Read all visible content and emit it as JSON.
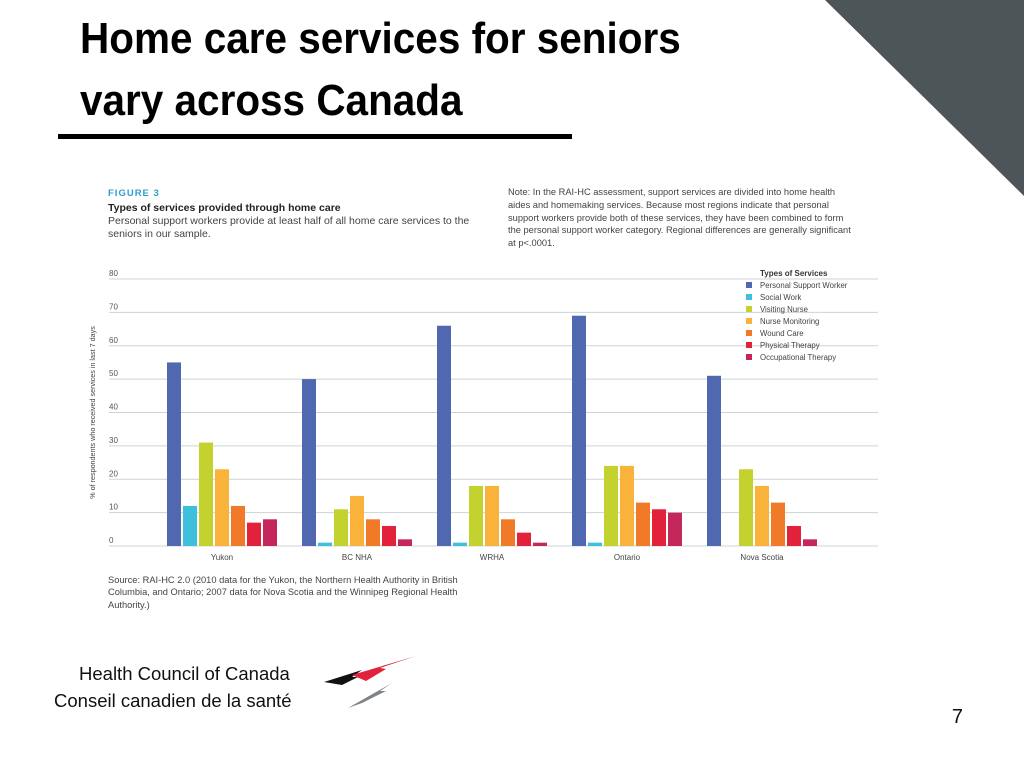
{
  "slide": {
    "title_line1": "Home care services for seniors",
    "title_line2": "vary across Canada",
    "page_number": "7",
    "accent_color": "#4d5559"
  },
  "figure": {
    "label": "FIGURE 3",
    "title": "Types of services provided through home care",
    "subtitle": "Personal support workers provide at least half of all home care services to the seniors in our sample.",
    "note": "Note: In the RAI-HC assessment, support services are divided into home health aides and homemaking services. Because most regions indicate that personal support workers provide both of these services, they have been combined to form the personal support worker category. Regional differences are generally significant at p<.0001.",
    "source": "Source: RAI-HC 2.0 (2010 data for the Yukon, the Northern Health Authority in British Columbia, and Ontario; 2007 data for Nova Scotia and the Winnipeg Regional Health Authority.)"
  },
  "chart_data": {
    "type": "bar",
    "title": "Types of services provided through home care",
    "xlabel": "",
    "ylabel": "% of respondents who received services in last 7 days",
    "ylim": [
      0,
      80
    ],
    "yticks": [
      0,
      10,
      20,
      30,
      40,
      50,
      60,
      70,
      80
    ],
    "grid": true,
    "legend_title": "Types of Services",
    "legend_position": "top-right",
    "categories": [
      "Yukon",
      "BC NHA",
      "WRHA",
      "Ontario",
      "Nova Scotia"
    ],
    "series": [
      {
        "name": "Personal Support Worker",
        "color": "#5068b0",
        "values": [
          55,
          50,
          66,
          69,
          51
        ]
      },
      {
        "name": "Social Work",
        "color": "#3ec0dc",
        "values": [
          12,
          1,
          1,
          1,
          0
        ]
      },
      {
        "name": "Visiting Nurse",
        "color": "#c4d230",
        "values": [
          31,
          11,
          18,
          24,
          23
        ]
      },
      {
        "name": "Nurse Monitoring",
        "color": "#f9b33a",
        "values": [
          23,
          15,
          18,
          24,
          18
        ]
      },
      {
        "name": "Wound Care",
        "color": "#f07a27",
        "values": [
          12,
          8,
          8,
          13,
          13
        ]
      },
      {
        "name": "Physical Therapy",
        "color": "#e2213a",
        "values": [
          7,
          6,
          4,
          11,
          6
        ]
      },
      {
        "name": "Occupational Therapy",
        "color": "#c4285a",
        "values": [
          8,
          2,
          1,
          10,
          2
        ]
      }
    ]
  },
  "logo": {
    "name_en": "Health Council of Canada",
    "name_fr": "Conseil canadien de la santé"
  }
}
